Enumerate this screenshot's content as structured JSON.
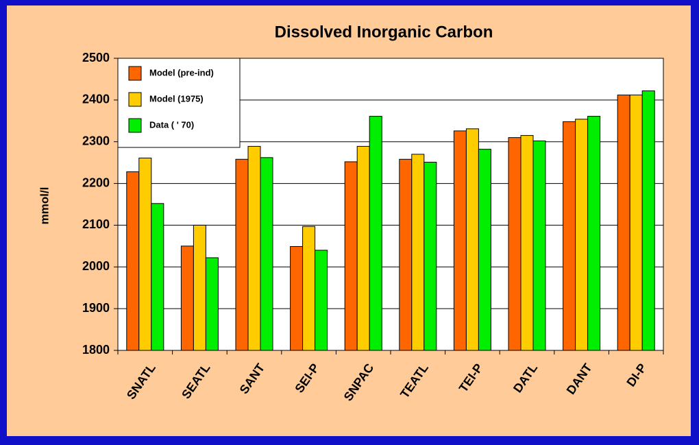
{
  "chart_data": {
    "type": "bar",
    "title": "Dissolved Inorganic Carbon",
    "y_label": "mmol/l",
    "categories": [
      "SNATL",
      "SEATL",
      "SANT",
      "SEI-P",
      "SNPAC",
      "TEATL",
      "TEI-P",
      "DATL",
      "DANT",
      "DI-P"
    ],
    "series": [
      {
        "name": "Model (pre-ind)",
        "color": "#ff6600",
        "values": [
          2228,
          2050,
          2258,
          2049,
          2252,
          2258,
          2326,
          2310,
          2348,
          2412
        ]
      },
      {
        "name": "Model (1975)",
        "color": "#ffcc00",
        "values": [
          2261,
          2100,
          2289,
          2097,
          2289,
          2270,
          2331,
          2315,
          2354,
          2412
        ]
      },
      {
        "name": "Data ( ' 70)",
        "color": "#00ee00",
        "values": [
          2152,
          2022,
          2262,
          2040,
          2361,
          2251,
          2282,
          2302,
          2361,
          2422
        ]
      }
    ],
    "ylim": [
      1800,
      2500
    ],
    "yticks": [
      1800,
      1900,
      2000,
      2100,
      2200,
      2300,
      2400,
      2500
    ],
    "grid": true,
    "legend": "upper left"
  }
}
